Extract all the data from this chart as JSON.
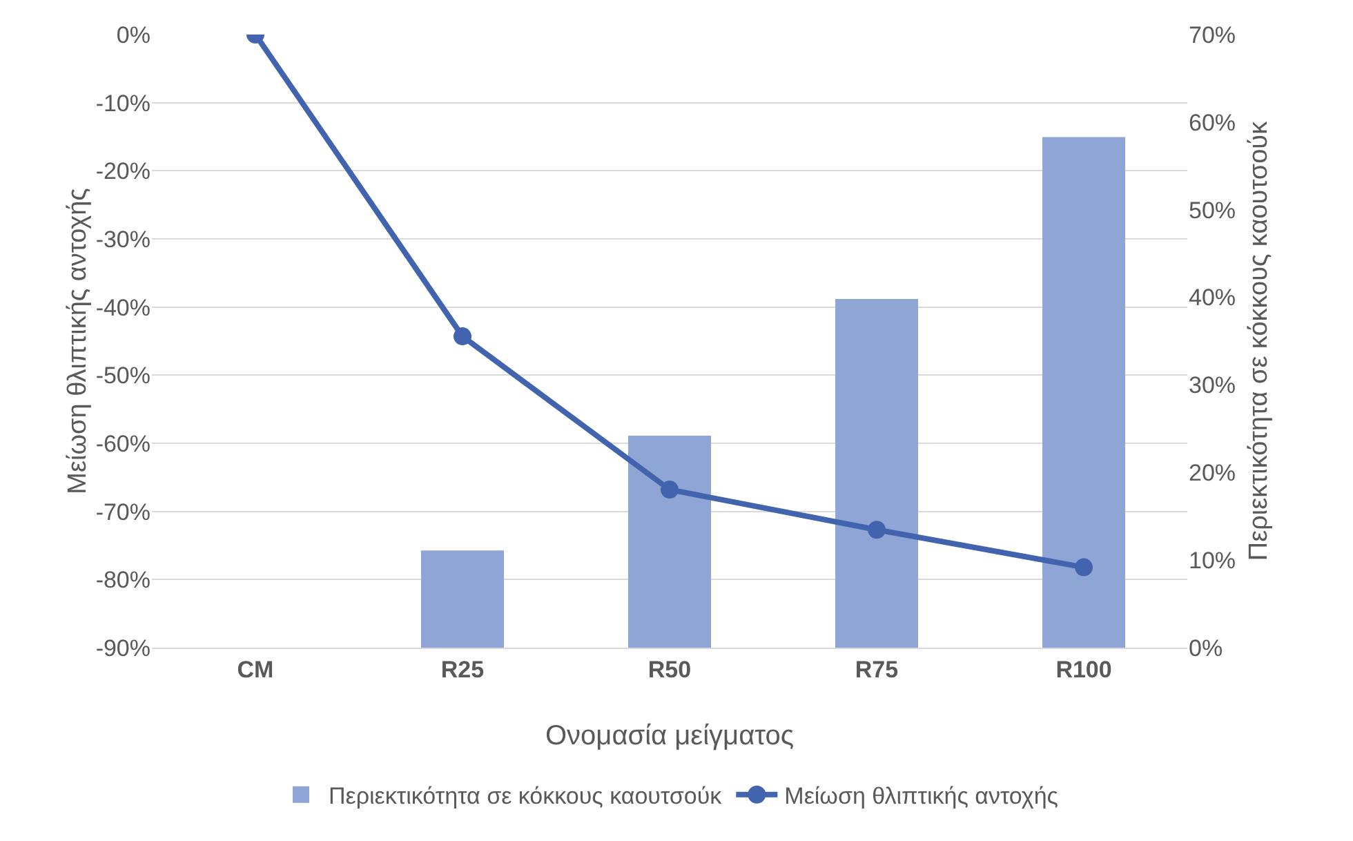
{
  "chart_data": {
    "type": "bar",
    "xlabel": "Ονομασία μείγματος",
    "ylabel": "Μείωση θλιπτικής αντοχής",
    "y2label": "Περιεκτικότητα σε κόκκους καουτσούκ",
    "categories": [
      "CM",
      "R25",
      "R50",
      "R75",
      "R100"
    ],
    "series": [
      {
        "name": "Περιεκτικότητα σε κόκκους καουτσούκ",
        "axis": "y2",
        "color": "#8fa5d6",
        "values": [
          0,
          11.1,
          24.2,
          39.8,
          58.3
        ]
      },
      {
        "name": "Μείωση θλιπτικής αντοχής",
        "type": "line",
        "axis": "y",
        "color": "#4264ae",
        "marker": "circle",
        "line_style": "solid",
        "values": [
          0,
          -44.3,
          -66.8,
          -72.7,
          -78.2
        ]
      }
    ],
    "ylim": [
      -90,
      0
    ],
    "yticks": [
      {
        "value": 0,
        "label": "0%"
      },
      {
        "value": -10,
        "label": "-10%"
      },
      {
        "value": -20,
        "label": "-20%"
      },
      {
        "value": -30,
        "label": "-30%"
      },
      {
        "value": -40,
        "label": "-40%"
      },
      {
        "value": -50,
        "label": "-50%"
      },
      {
        "value": -60,
        "label": "-60%"
      },
      {
        "value": -70,
        "label": "-70%"
      },
      {
        "value": -80,
        "label": "-80%"
      },
      {
        "value": -90,
        "label": "-90%"
      }
    ],
    "y2lim": [
      0,
      70
    ],
    "y2ticks": [
      {
        "value": 0,
        "label": "0%"
      },
      {
        "value": 10,
        "label": "10%"
      },
      {
        "value": 20,
        "label": "20%"
      },
      {
        "value": 30,
        "label": "30%"
      },
      {
        "value": 40,
        "label": "40%"
      },
      {
        "value": 50,
        "label": "50%"
      },
      {
        "value": 60,
        "label": "60%"
      },
      {
        "value": 70,
        "label": "70%"
      }
    ],
    "grid": "y",
    "legend": "bottom"
  }
}
